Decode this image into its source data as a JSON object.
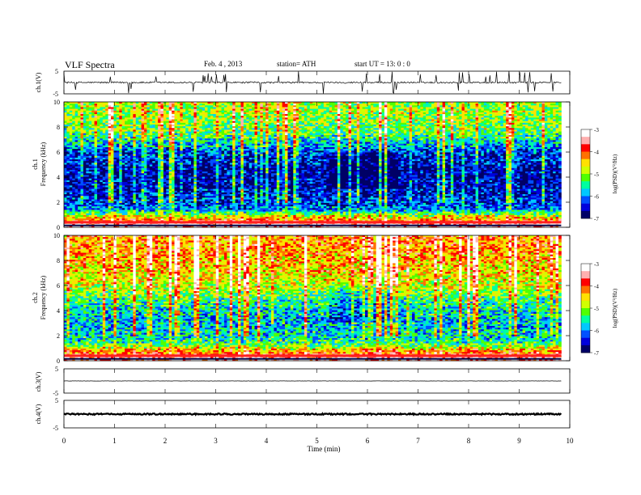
{
  "header": {
    "title": "VLF  Spectra",
    "date": "Feb. 4  , 2013",
    "station": "station= ATH",
    "start": "start  UT  =    13: 0  : 0"
  },
  "chart_data": [
    {
      "type": "line",
      "panel": "ch1-waveform",
      "ylabel": "ch.1(V)",
      "ylim": [
        -5,
        5
      ],
      "yticks": [
        "5",
        "-5"
      ],
      "baseline": 0,
      "noise_amplitude": 0.35,
      "spikes": "frequent"
    },
    {
      "type": "heatmap",
      "panel": "ch1-spectrogram",
      "ylabel_channel": "ch.1",
      "ylabel": "Frequency  (kHz)",
      "ylim": [
        0,
        10
      ],
      "yticks": [
        "0",
        "2",
        "4",
        "6",
        "8",
        "10"
      ],
      "colorbar_label": "log(PSD)(V²/Hz)",
      "colorbar_ticks": [
        "-3",
        "-4",
        "-5",
        "-6",
        "-7"
      ],
      "colorbar_range": [
        -7,
        -3
      ],
      "mean_log_psd_by_frequency": [
        {
          "freq_khz": 0.3,
          "value": -3.4
        },
        {
          "freq_khz": 0.6,
          "value": -4.2
        },
        {
          "freq_khz": 1.5,
          "value": -6.2
        },
        {
          "freq_khz": 3,
          "value": -6.6
        },
        {
          "freq_khz": 4.5,
          "value": -6.7
        },
        {
          "freq_khz": 6,
          "value": -6.3
        },
        {
          "freq_khz": 7.5,
          "value": -5.3
        },
        {
          "freq_khz": 9,
          "value": -5.0
        }
      ]
    },
    {
      "type": "heatmap",
      "panel": "ch2-spectrogram",
      "ylabel_channel": "ch.2",
      "ylabel": "Frequency  (kHz)",
      "ylim": [
        0,
        10
      ],
      "yticks": [
        "0",
        "2",
        "4",
        "6",
        "8",
        "10"
      ],
      "colorbar_label": "log(PSD)(V²/Hz)",
      "colorbar_ticks": [
        "-3",
        "-4",
        "-5",
        "-6",
        "-7"
      ],
      "colorbar_range": [
        -7,
        -3
      ],
      "mean_log_psd_by_frequency": [
        {
          "freq_khz": 0.3,
          "value": -3.6
        },
        {
          "freq_khz": 1.5,
          "value": -5.6
        },
        {
          "freq_khz": 3,
          "value": -5.9
        },
        {
          "freq_khz": 4.5,
          "value": -5.6
        },
        {
          "freq_khz": 6,
          "value": -4.8
        },
        {
          "freq_khz": 7.5,
          "value": -4.5
        },
        {
          "freq_khz": 9,
          "value": -4.3
        }
      ]
    },
    {
      "type": "line",
      "panel": "ch3-waveform",
      "ylabel": "ch.3(V)",
      "ylim": [
        -5,
        5
      ],
      "yticks": [
        "5",
        "-5"
      ],
      "baseline": 0,
      "noise_amplitude": 0.05
    },
    {
      "type": "line",
      "panel": "ch4-waveform",
      "ylabel": "ch.4(V)",
      "ylim": [
        -5,
        5
      ],
      "yticks": [
        "5",
        "-5"
      ],
      "baseline": 0,
      "noise_amplitude": 0.25
    }
  ],
  "x_axis": {
    "label": "Time  (min)",
    "xlim": [
      0,
      10
    ],
    "data_end": 9.83,
    "ticks": [
      "0",
      "1",
      "2",
      "3",
      "4",
      "5",
      "6",
      "7",
      "8",
      "9",
      "10"
    ]
  },
  "colormap": [
    "#000066",
    "#0000dd",
    "#0050ff",
    "#00c8ff",
    "#00ffa0",
    "#50ff00",
    "#d0ff00",
    "#ffe000",
    "#ff7000",
    "#ff0000",
    "#ffb0b0",
    "#ffffff"
  ]
}
